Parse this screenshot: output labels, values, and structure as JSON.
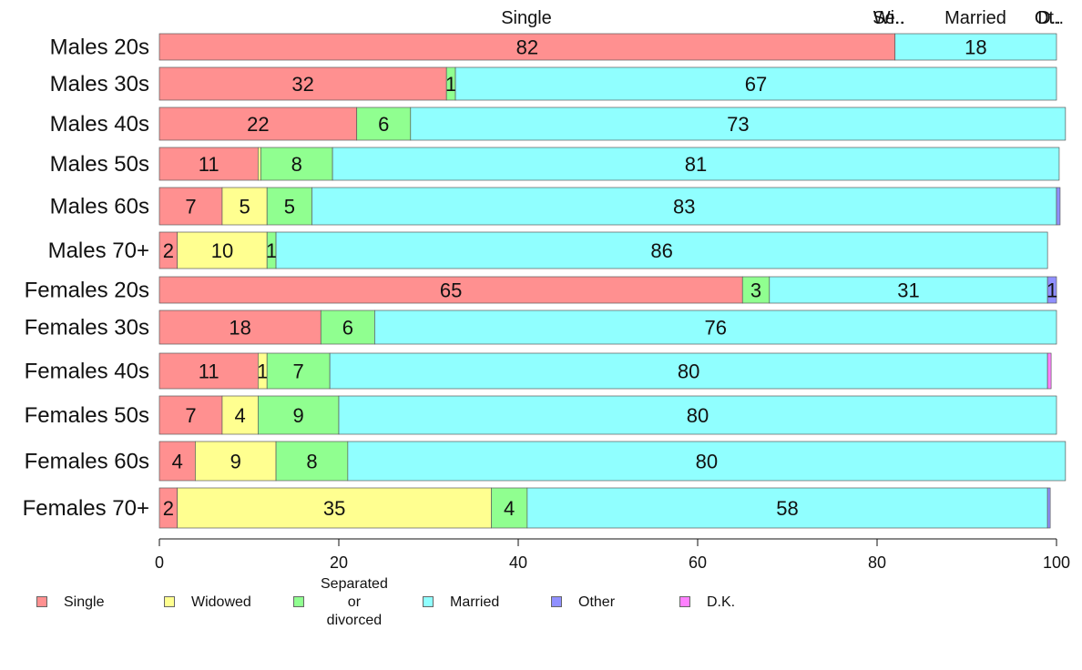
{
  "chart_data": {
    "type": "bar",
    "orientation": "horizontal",
    "stacked": true,
    "categories": [
      "Males 20s",
      "Males 30s",
      "Males 40s",
      "Males 50s",
      "Males 60s",
      "Males 70+",
      "Females 20s",
      "Females 30s",
      "Females 40s",
      "Females 50s",
      "Females 60s",
      "Females 70+"
    ],
    "series": [
      {
        "name": "Single",
        "color": "#ff9090",
        "values": [
          82,
          32,
          22,
          11,
          7,
          2,
          65,
          18,
          11,
          7,
          4,
          2
        ]
      },
      {
        "name": "Widowed",
        "color": "#ffff90",
        "values": [
          0,
          0,
          0,
          0.3,
          5,
          10,
          0,
          0,
          1,
          4,
          9,
          35
        ]
      },
      {
        "name": "Separated\nor divorced",
        "color": "#90ff90",
        "values": [
          0,
          1,
          6,
          8,
          5,
          1,
          3,
          6,
          7,
          9,
          8,
          4
        ]
      },
      {
        "name": "Married",
        "color": "#90ffff",
        "values": [
          18,
          67,
          73,
          81,
          83,
          86,
          31,
          76,
          80,
          80,
          80,
          58
        ]
      },
      {
        "name": "Other",
        "color": "#9090ff",
        "values": [
          0,
          0,
          0,
          0,
          0.4,
          0,
          1,
          0,
          0,
          0,
          0,
          0.3
        ]
      },
      {
        "name": "D.K.",
        "color": "#ff80ff",
        "values": [
          0,
          0,
          0,
          0,
          0,
          0,
          0,
          0,
          0.4,
          0,
          0,
          0
        ]
      }
    ],
    "value_labels": [
      [
        "82",
        "",
        "",
        "18",
        "",
        ""
      ],
      [
        "32",
        "",
        "1",
        "67",
        "",
        ""
      ],
      [
        "22",
        "",
        "6",
        "73",
        "",
        ""
      ],
      [
        "11",
        "",
        "8",
        "81",
        "",
        ""
      ],
      [
        "7",
        "5",
        "5",
        "83",
        "",
        ""
      ],
      [
        "2",
        "10",
        "1",
        "86",
        "",
        ""
      ],
      [
        "65",
        "",
        "3",
        "31",
        "1",
        ""
      ],
      [
        "18",
        "",
        "6",
        "76",
        "",
        ""
      ],
      [
        "11",
        "1",
        "7",
        "80",
        "",
        ""
      ],
      [
        "7",
        "4",
        "9",
        "80",
        "",
        ""
      ],
      [
        "4",
        "9",
        "8",
        "80",
        "",
        ""
      ],
      [
        "2",
        "35",
        "4",
        "58",
        "",
        ""
      ]
    ],
    "top_labels": [
      "Single",
      "Wi..",
      "Se..",
      "Married",
      "Ot..",
      "D.."
    ],
    "xlim": [
      0,
      100
    ],
    "xticks": [
      0,
      20,
      40,
      60,
      80,
      100
    ],
    "legend_position": "bottom"
  }
}
